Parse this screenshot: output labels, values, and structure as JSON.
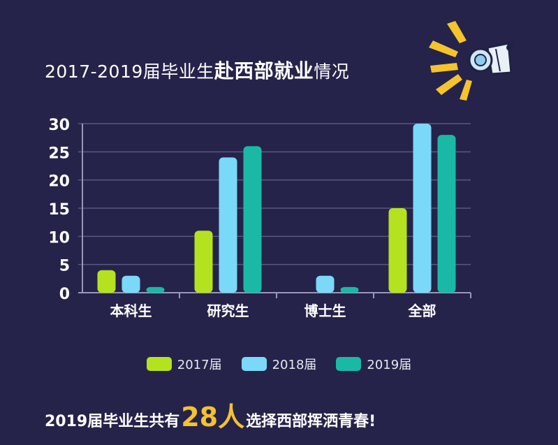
{
  "title": {
    "prefix": "2017-2019届毕业生",
    "highlight": "赴西部就业",
    "suffix": "情况"
  },
  "footer": {
    "prefix": "2019届毕业生共有",
    "number": "28人",
    "suffix": "选择西部挥洒青春!"
  },
  "colors": {
    "background": "#26234a",
    "s2017": "#b5e21e",
    "s2018": "#7ad8f8",
    "s2019": "#19b9a6",
    "accent": "#f2c230"
  },
  "chart_data": {
    "type": "bar",
    "categories": [
      "本科生",
      "研究生",
      "博士生",
      "全部"
    ],
    "series": [
      {
        "name": "2017届",
        "values": [
          4,
          11,
          0,
          15
        ]
      },
      {
        "name": "2018届",
        "values": [
          3,
          24,
          3,
          30
        ]
      },
      {
        "name": "2019届",
        "values": [
          1,
          26,
          1,
          28
        ]
      }
    ],
    "ylim": [
      0,
      30
    ],
    "yticks": [
      "0",
      "5",
      "10",
      "15",
      "20",
      "25",
      "30"
    ],
    "grid": true,
    "legend_position": "bottom"
  }
}
